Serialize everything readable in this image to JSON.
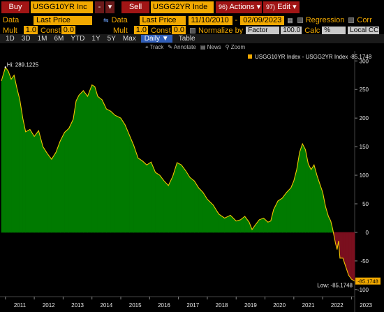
{
  "header": {
    "buy_label": "Buy",
    "buy_ticker": "USGG10YR Inc",
    "minus_btn": "-",
    "sell_label": "Sell",
    "sell_ticker": "USGG2YR Inde",
    "actions_num": "96)",
    "actions_label": "Actions",
    "edit_num": "97)",
    "edit_label": "Edit"
  },
  "row2": {
    "data_label": "Data",
    "data_value": "Last Price",
    "data2_label": "Data",
    "data2_value": "Last Price",
    "date_start": "11/10/2010",
    "date_sep": "-",
    "date_end": "02/09/2023",
    "regression_label": "Regression",
    "corr_label": "Corr"
  },
  "row3": {
    "mult_label": "Mult",
    "mult_value": "1.0",
    "const_label": "Const",
    "const_value": "0.0",
    "mult2_label": "Mult",
    "mult2_value": "1.0",
    "const2_label": "Const",
    "const2_value": "0.0",
    "normalize_label": "Normalize by",
    "normalize_value": "Factor",
    "normalize_num": "100.0",
    "calc_label": "Calc",
    "calc_value": "%",
    "ccy_value": "Local CCY"
  },
  "periods": [
    "1D",
    "3D",
    "1M",
    "6M",
    "YTD",
    "1Y",
    "5Y",
    "Max"
  ],
  "freq_value": "Daily",
  "table_label": "Table",
  "tools": {
    "track": "Track",
    "annotate": "Annotate",
    "news": "News",
    "zoom": "Zoom"
  },
  "colors": {
    "amber": "#f2a900",
    "positive_fill": "#007a00",
    "negative_fill": "#7a0f1e",
    "line": "#f2c500"
  },
  "chart_data": {
    "type": "area",
    "legend": "USGG10YR Index - USGG2YR Index -85.1748",
    "legend_placement": "top-right",
    "high_label": "Hi: 289.1225",
    "low_label": "Low: -85.1748",
    "last_value_label": "-85.1748",
    "yticks": [
      300,
      250,
      200,
      150,
      100,
      50,
      0,
      -50,
      -100
    ],
    "ylim": [
      -110,
      315
    ],
    "xlim": [
      2010.86,
      2023.11
    ],
    "xticks": [
      "2011",
      "2012",
      "2013",
      "2014",
      "2015",
      "2016",
      "2017",
      "2018",
      "2019",
      "2020",
      "2021",
      "2022",
      "2023"
    ],
    "x": [
      2010.86,
      2011.0,
      2011.1,
      2011.2,
      2011.3,
      2011.4,
      2011.5,
      2011.6,
      2011.7,
      2011.85,
      2012.0,
      2012.15,
      2012.3,
      2012.45,
      2012.6,
      2012.75,
      2012.9,
      2013.05,
      2013.2,
      2013.35,
      2013.45,
      2013.55,
      2013.7,
      2013.85,
      2014.0,
      2014.1,
      2014.2,
      2014.35,
      2014.5,
      2014.65,
      2014.8,
      2015.0,
      2015.15,
      2015.3,
      2015.45,
      2015.6,
      2015.75,
      2015.9,
      2016.05,
      2016.2,
      2016.35,
      2016.5,
      2016.65,
      2016.8,
      2016.95,
      2017.1,
      2017.25,
      2017.4,
      2017.55,
      2017.7,
      2017.85,
      2018.0,
      2018.2,
      2018.4,
      2018.6,
      2018.8,
      2019.0,
      2019.15,
      2019.3,
      2019.45,
      2019.55,
      2019.65,
      2019.8,
      2019.95,
      2020.1,
      2020.2,
      2020.3,
      2020.45,
      2020.6,
      2020.75,
      2020.9,
      2021.0,
      2021.1,
      2021.2,
      2021.3,
      2021.4,
      2021.5,
      2021.6,
      2021.7,
      2021.8,
      2021.9,
      2022.0,
      2022.1,
      2022.2,
      2022.28,
      2022.35,
      2022.45,
      2022.5,
      2022.55,
      2022.6,
      2022.7,
      2022.8,
      2022.9,
      2023.0,
      2023.11
    ],
    "y": [
      265,
      289,
      282,
      268,
      275,
      252,
      232,
      200,
      176,
      180,
      168,
      178,
      150,
      138,
      128,
      140,
      160,
      175,
      182,
      198,
      230,
      240,
      248,
      238,
      258,
      255,
      238,
      232,
      216,
      212,
      205,
      200,
      188,
      170,
      152,
      130,
      125,
      118,
      123,
      105,
      100,
      90,
      82,
      98,
      122,
      118,
      108,
      96,
      90,
      78,
      70,
      58,
      48,
      32,
      25,
      30,
      20,
      22,
      28,
      18,
      5,
      12,
      22,
      25,
      18,
      20,
      40,
      55,
      60,
      70,
      78,
      90,
      110,
      140,
      155,
      145,
      120,
      110,
      118,
      100,
      85,
      70,
      45,
      28,
      20,
      5,
      -20,
      -30,
      -15,
      -45,
      -45,
      -60,
      -75,
      -82,
      -85.1748
    ]
  }
}
